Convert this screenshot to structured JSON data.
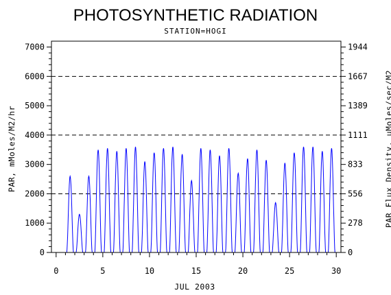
{
  "chart_data": {
    "type": "line",
    "title": "PHOTOSYNTHETIC RADIATION",
    "subtitle": "STATION=HOGI",
    "xlabel": "JUL 2003",
    "ylabel": "PAR, mMoles/M2/hr",
    "y2label": "PAR Flux Density, uMoles/sec/M2",
    "xlim": [
      -0.5,
      30.5
    ],
    "ylim": [
      0,
      7200
    ],
    "xticks": [
      0,
      5,
      10,
      15,
      20,
      25,
      30
    ],
    "yticks": [
      0,
      1000,
      2000,
      3000,
      4000,
      5000,
      6000,
      7000
    ],
    "y2ticks": [
      {
        "value": 0,
        "label": "0"
      },
      {
        "value": 1000,
        "label": "278"
      },
      {
        "value": 2000,
        "label": "556"
      },
      {
        "value": 3000,
        "label": "833"
      },
      {
        "value": 4000,
        "label": "1111"
      },
      {
        "value": 5000,
        "label": "1389"
      },
      {
        "value": 6000,
        "label": "1667"
      },
      {
        "value": 7000,
        "label": "1944"
      }
    ],
    "reference_lines": [
      2000,
      4000,
      6000
    ],
    "grid": false,
    "line_color": "#0000ff",
    "series": [
      {
        "daily_peaks": [
          {
            "day": 1.5,
            "peak": 2600
          },
          {
            "day": 2.5,
            "peak": 1300
          },
          {
            "day": 3.5,
            "peak": 2600
          },
          {
            "day": 4.5,
            "peak": 3500
          },
          {
            "day": 5.5,
            "peak": 3550
          },
          {
            "day": 6.5,
            "peak": 3450
          },
          {
            "day": 7.5,
            "peak": 3550
          },
          {
            "day": 8.5,
            "peak": 3600
          },
          {
            "day": 9.5,
            "peak": 3100
          },
          {
            "day": 10.5,
            "peak": 3400
          },
          {
            "day": 11.5,
            "peak": 3550
          },
          {
            "day": 12.5,
            "peak": 3600
          },
          {
            "day": 13.5,
            "peak": 3350
          },
          {
            "day": 14.5,
            "peak": 2450
          },
          {
            "day": 15.5,
            "peak": 3550
          },
          {
            "day": 16.5,
            "peak": 3500
          },
          {
            "day": 17.5,
            "peak": 3300
          },
          {
            "day": 18.5,
            "peak": 3550
          },
          {
            "day": 19.5,
            "peak": 2700
          },
          {
            "day": 20.5,
            "peak": 3200
          },
          {
            "day": 21.5,
            "peak": 3500
          },
          {
            "day": 22.5,
            "peak": 3150
          },
          {
            "day": 23.5,
            "peak": 1700
          },
          {
            "day": 24.5,
            "peak": 3050
          },
          {
            "day": 25.5,
            "peak": 3400
          },
          {
            "day": 26.5,
            "peak": 3600
          },
          {
            "day": 27.5,
            "peak": 3600
          },
          {
            "day": 28.5,
            "peak": 3450
          },
          {
            "day": 29.5,
            "peak": 3550
          }
        ]
      }
    ]
  }
}
